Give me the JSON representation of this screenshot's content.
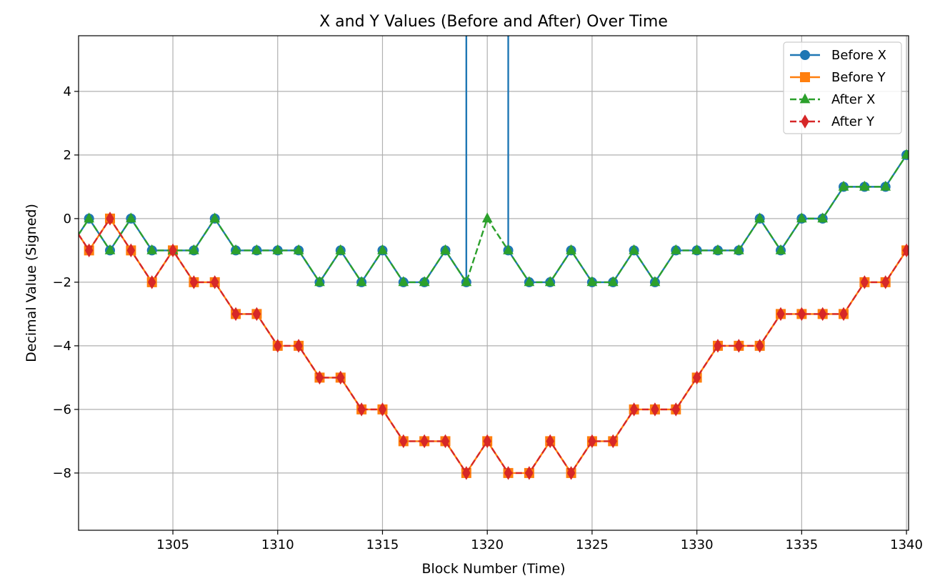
{
  "chart_data": {
    "type": "line",
    "title": "X and Y Values (Before and After) Over Time",
    "xlabel": "Block Number (Time)",
    "ylabel": "Decimal Value (Signed)",
    "xlim": [
      1300.5,
      1340.1
    ],
    "ylim": [
      -9.8,
      5.75
    ],
    "xticks": [
      1305,
      1310,
      1315,
      1320,
      1325,
      1330,
      1335,
      1340
    ],
    "yticks": [
      -8,
      -6,
      -4,
      -2,
      0,
      2,
      4
    ],
    "grid": true,
    "legend_position": "top-right",
    "x": [
      1300,
      1301,
      1302,
      1303,
      1304,
      1305,
      1306,
      1307,
      1308,
      1309,
      1310,
      1311,
      1312,
      1313,
      1314,
      1315,
      1316,
      1317,
      1318,
      1319,
      1320,
      1321,
      1322,
      1323,
      1324,
      1325,
      1326,
      1327,
      1328,
      1329,
      1330,
      1331,
      1332,
      1333,
      1334,
      1335,
      1336,
      1337,
      1338,
      1339,
      1340
    ],
    "series": [
      {
        "name": "Before X",
        "color": "#1f77b4",
        "marker": "circle",
        "linestyle": "solid",
        "values": [
          -1,
          0,
          -1,
          0,
          -1,
          -1,
          -1,
          0,
          -1,
          -1,
          -1,
          -1,
          -2,
          -1,
          -2,
          -1,
          -2,
          -2,
          -1,
          -2,
          null,
          -1,
          -2,
          -2,
          -1,
          -2,
          -2,
          -1,
          -2,
          -1,
          -1,
          -1,
          -1,
          0,
          -1,
          0,
          0,
          1,
          1,
          1,
          2
        ]
      },
      {
        "name": "Before Y",
        "color": "#ff7f0e",
        "marker": "square",
        "linestyle": "solid",
        "values": [
          0,
          -1,
          0,
          -1,
          -2,
          -1,
          -2,
          -2,
          -3,
          -3,
          -4,
          -4,
          -5,
          -5,
          -6,
          -6,
          -7,
          -7,
          -7,
          -8,
          -7,
          -8,
          -8,
          -7,
          -8,
          -7,
          -7,
          -6,
          -6,
          -6,
          -5,
          -4,
          -4,
          -4,
          -3,
          -3,
          -3,
          -3,
          -2,
          -2,
          -1
        ]
      },
      {
        "name": "After X",
        "color": "#2ca02c",
        "marker": "triangle",
        "linestyle": "dashed",
        "values": [
          -1,
          0,
          -1,
          0,
          -1,
          -1,
          -1,
          0,
          -1,
          -1,
          -1,
          -1,
          -2,
          -1,
          -2,
          -1,
          -2,
          -2,
          -1,
          -2,
          0,
          -1,
          -2,
          -2,
          -1,
          -2,
          -2,
          -1,
          -2,
          -1,
          -1,
          -1,
          -1,
          0,
          -1,
          0,
          0,
          1,
          1,
          1,
          2
        ]
      },
      {
        "name": "After Y",
        "color": "#d62728",
        "marker": "diamond",
        "linestyle": "dashed",
        "values": [
          0,
          -1,
          0,
          -1,
          -2,
          -1,
          -2,
          -2,
          -3,
          -3,
          -4,
          -4,
          -5,
          -5,
          -6,
          -6,
          -7,
          -7,
          -7,
          -8,
          -7,
          -8,
          -8,
          -7,
          -8,
          -7,
          -7,
          -6,
          -6,
          -6,
          -5,
          -4,
          -4,
          -4,
          -3,
          -3,
          -3,
          -3,
          -2,
          -2,
          -1
        ]
      }
    ]
  }
}
